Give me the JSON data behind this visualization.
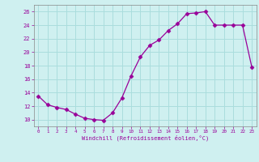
{
  "x": [
    0,
    1,
    2,
    3,
    4,
    5,
    6,
    7,
    8,
    9,
    10,
    11,
    12,
    13,
    14,
    15,
    16,
    17,
    18,
    19,
    20,
    21,
    22,
    23
  ],
  "y": [
    13.5,
    12.2,
    11.8,
    11.5,
    10.8,
    10.2,
    10.0,
    9.9,
    11.0,
    13.2,
    16.5,
    19.3,
    21.0,
    21.8,
    23.2,
    24.2,
    25.7,
    25.8,
    26.0,
    24.0,
    24.0,
    24.0,
    24.0,
    17.8
  ],
  "line_color": "#990099",
  "marker": "D",
  "marker_size": 2.5,
  "bg_color": "#cff0f0",
  "grid_color": "#aadddd",
  "tick_label_color": "#990099",
  "xlabel": "Windchill (Refroidissement éolien,°C)",
  "xlabel_color": "#990099",
  "ylabel_ticks": [
    10,
    12,
    14,
    16,
    18,
    20,
    22,
    24,
    26
  ],
  "xlim": [
    -0.5,
    23.5
  ],
  "ylim": [
    9.0,
    27.0
  ],
  "xticks": [
    0,
    1,
    2,
    3,
    4,
    5,
    6,
    7,
    8,
    9,
    10,
    11,
    12,
    13,
    14,
    15,
    16,
    17,
    18,
    19,
    20,
    21,
    22,
    23
  ]
}
